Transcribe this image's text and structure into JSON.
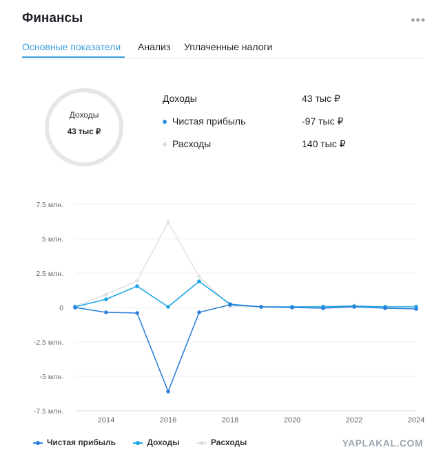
{
  "header": {
    "title": "Финансы",
    "more_icon": "more-dots-icon"
  },
  "tabs": [
    {
      "label": "Основные показатели",
      "active": true
    },
    {
      "label": "Анализ",
      "active": false
    },
    {
      "label": "Уплаченные налоги",
      "active": false
    }
  ],
  "summary": {
    "donut_label": "Доходы",
    "donut_value": "43 тыс ₽",
    "rows": [
      {
        "label": "Доходы",
        "value": "43 тыс ₽",
        "dot_color": ""
      },
      {
        "label": "Чистая прибыль",
        "value": "-97 тыс ₽",
        "dot_color": "#2f8fe0"
      },
      {
        "label": "Расходы",
        "value": "140 тыс ₽",
        "dot_color": "#dddddd"
      }
    ]
  },
  "colors": {
    "net_profit": "#2d7fd8",
    "income": "#1aa7e6",
    "expenses": "#e2e2e2",
    "accent": "#3c9fe0"
  },
  "chart_data": {
    "type": "line",
    "x": [
      2013,
      2014,
      2015,
      2016,
      2017,
      2018,
      2019,
      2020,
      2021,
      2022,
      2023,
      2024
    ],
    "xticks": [
      "2014",
      "2016",
      "2018",
      "2020",
      "2022",
      "2024"
    ],
    "yticks": [
      "7.5 млн.",
      "5 млн.",
      "2.5 млн.",
      "0",
      "-2.5 млн.",
      "-5 млн.",
      "-7.5 млн."
    ],
    "ylim": [
      -7.5,
      7.5
    ],
    "grid": true,
    "legend_position": "bottom-left",
    "series": [
      {
        "name": "Чистая прибыль",
        "color": "#2d7fd8",
        "values": [
          0.0,
          -0.35,
          -0.4,
          -6.1,
          -0.35,
          0.2,
          0.05,
          0.0,
          -0.05,
          0.05,
          -0.05,
          -0.1
        ]
      },
      {
        "name": "Доходы",
        "color": "#1aa7e6",
        "values": [
          0.05,
          0.6,
          1.55,
          0.05,
          1.9,
          0.25,
          0.05,
          0.05,
          0.05,
          0.1,
          0.05,
          0.05
        ]
      },
      {
        "name": "Расходы",
        "color": "#e2e2e2",
        "values": [
          0.1,
          0.95,
          1.95,
          6.2,
          2.25,
          0.1,
          0.05,
          0.05,
          0.1,
          0.15,
          0.05,
          0.1
        ]
      }
    ]
  },
  "watermark": "YAPLAKAL.COM"
}
